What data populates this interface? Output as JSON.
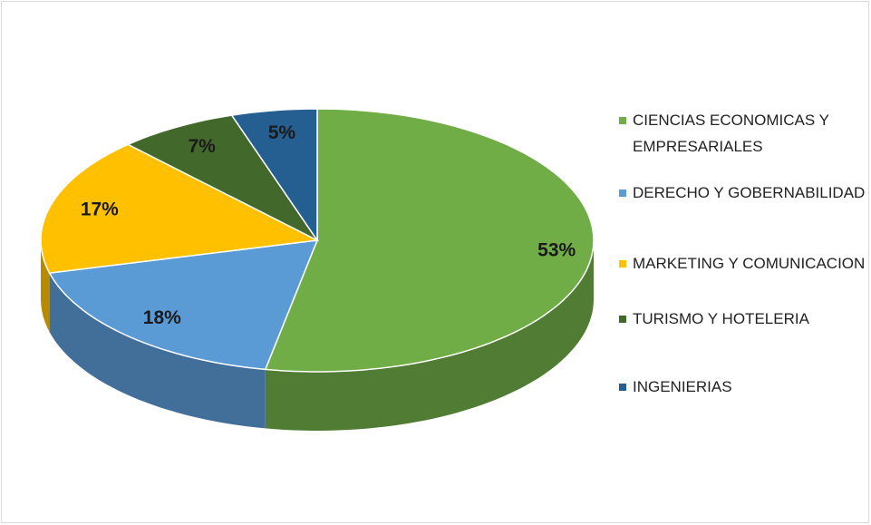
{
  "chart_data": {
    "type": "pie",
    "categories": [
      "CIENCIAS ECONOMICAS Y EMPRESARIALES",
      "DERECHO Y GOBERNABILIDAD",
      "MARKETING Y COMUNICACION",
      "TURISMO Y HOTELERIA",
      "INGENIERIAS"
    ],
    "values": [
      53,
      18,
      17,
      7,
      5
    ],
    "value_labels": [
      "53%",
      "18%",
      "17%",
      "7%",
      "5%"
    ],
    "colors": [
      "#70ad47",
      "#5b9bd5",
      "#ffc000",
      "#43682b",
      "#255e91"
    ],
    "legend": "right"
  }
}
